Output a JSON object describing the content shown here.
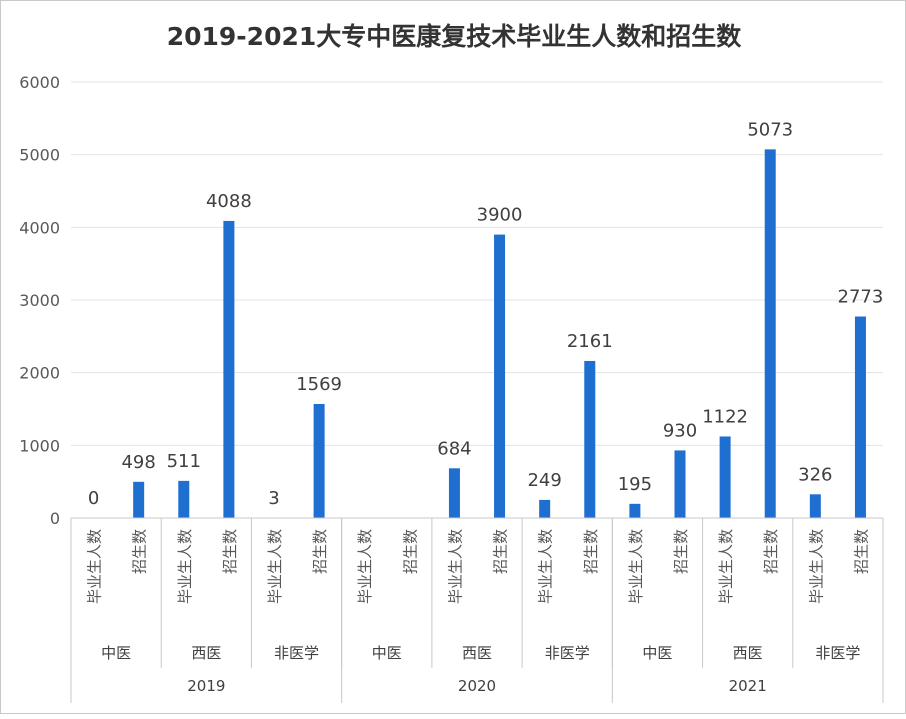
{
  "chart_data": {
    "type": "bar",
    "title": "2019-2021大专中医康复技术毕业生人数和招生数",
    "ylim": [
      0,
      6000
    ],
    "yticks": [
      0,
      1000,
      2000,
      3000,
      4000,
      5000,
      6000
    ],
    "grid": true,
    "legend": "none",
    "bar_color": "#1f6fd0",
    "categories": [
      {
        "year": "2019",
        "group": "中医",
        "metric": "毕业生人数",
        "value": 0
      },
      {
        "year": "2019",
        "group": "中医",
        "metric": "招生数",
        "value": 498
      },
      {
        "year": "2019",
        "group": "西医",
        "metric": "毕业生人数",
        "value": 511
      },
      {
        "year": "2019",
        "group": "西医",
        "metric": "招生数",
        "value": 4088
      },
      {
        "year": "2019",
        "group": "非医学",
        "metric": "毕业生人数",
        "value": 3
      },
      {
        "year": "2019",
        "group": "非医学",
        "metric": "招生数",
        "value": 1569
      },
      {
        "year": "2020",
        "group": "中医",
        "metric": "毕业生人数",
        "value": null
      },
      {
        "year": "2020",
        "group": "中医",
        "metric": "招生数",
        "value": null
      },
      {
        "year": "2020",
        "group": "西医",
        "metric": "毕业生人数",
        "value": 684
      },
      {
        "year": "2020",
        "group": "西医",
        "metric": "招生数",
        "value": 3900
      },
      {
        "year": "2020",
        "group": "非医学",
        "metric": "毕业生人数",
        "value": 249
      },
      {
        "year": "2020",
        "group": "非医学",
        "metric": "招生数",
        "value": 2161
      },
      {
        "year": "2021",
        "group": "中医",
        "metric": "毕业生人数",
        "value": 195
      },
      {
        "year": "2021",
        "group": "中医",
        "metric": "招生数",
        "value": 930
      },
      {
        "year": "2021",
        "group": "西医",
        "metric": "毕业生人数",
        "value": 1122
      },
      {
        "year": "2021",
        "group": "西医",
        "metric": "招生数",
        "value": 5073
      },
      {
        "year": "2021",
        "group": "非医学",
        "metric": "毕业生人数",
        "value": 326
      },
      {
        "year": "2021",
        "group": "非医学",
        "metric": "招生数",
        "value": 2773
      }
    ]
  }
}
